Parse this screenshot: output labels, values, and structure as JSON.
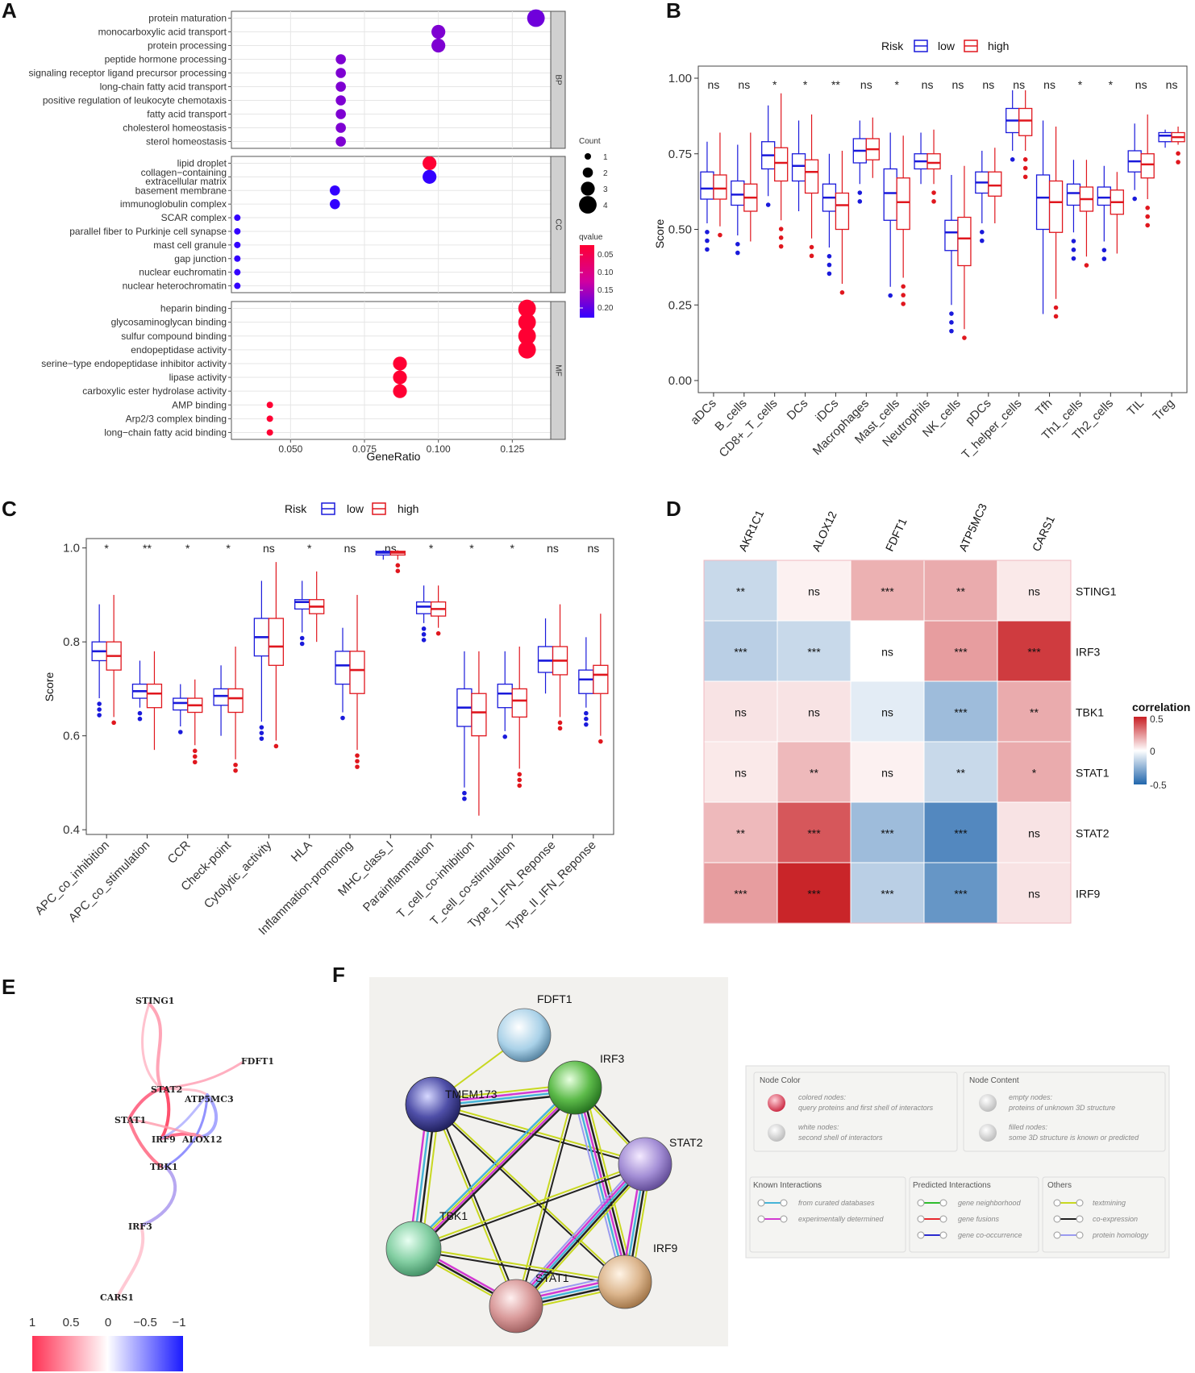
{
  "panels": {
    "A": "A",
    "B": "B",
    "C": "C",
    "D": "D",
    "E": "E",
    "F": "F"
  },
  "chart_data": [
    {
      "panel": "A",
      "type": "scatter",
      "xlabel": "GeneRatio",
      "xticks": [
        "0.050",
        "0.075",
        "0.100",
        "0.125"
      ],
      "xlim": [
        0.03,
        0.138
      ],
      "size_legend_title": "Count",
      "size_legend": [
        "1",
        "2",
        "3",
        "4"
      ],
      "color_legend_title": "qvalue",
      "color_legend_ticks": [
        "0.05",
        "0.10",
        "0.15",
        "0.20"
      ],
      "color_low": "#ff0033",
      "color_high": "#2200ff",
      "facets": [
        {
          "name": "BP",
          "terms": [
            {
              "term": "protein maturation",
              "ratio": 0.133,
              "count": 4,
              "q": 0.19
            },
            {
              "term": "monocarboxylic acid transport",
              "ratio": 0.1,
              "count": 3,
              "q": 0.18
            },
            {
              "term": "protein processing",
              "ratio": 0.1,
              "count": 3,
              "q": 0.18
            },
            {
              "term": "peptide hormone processing",
              "ratio": 0.067,
              "count": 2,
              "q": 0.18
            },
            {
              "term": "signaling receptor ligand precursor processing",
              "ratio": 0.067,
              "count": 2,
              "q": 0.18
            },
            {
              "term": "long-chain fatty acid transport",
              "ratio": 0.067,
              "count": 2,
              "q": 0.18
            },
            {
              "term": "positive regulation of leukocyte chemotaxis",
              "ratio": 0.067,
              "count": 2,
              "q": 0.18
            },
            {
              "term": "fatty acid transport",
              "ratio": 0.067,
              "count": 2,
              "q": 0.18
            },
            {
              "term": "cholesterol homeostasis",
              "ratio": 0.067,
              "count": 2,
              "q": 0.18
            },
            {
              "term": "sterol homeostasis",
              "ratio": 0.067,
              "count": 2,
              "q": 0.18
            }
          ]
        },
        {
          "name": "CC",
          "terms": [
            {
              "term": "lipid droplet",
              "ratio": 0.097,
              "count": 3,
              "q": 0.02
            },
            {
              "term": "collagen−containing\nextracellular matrix",
              "ratio": 0.097,
              "count": 3,
              "q": 0.23
            },
            {
              "term": "basement membrane",
              "ratio": 0.065,
              "count": 2,
              "q": 0.23
            },
            {
              "term": "immunoglobulin complex",
              "ratio": 0.065,
              "count": 2,
              "q": 0.23
            },
            {
              "term": "SCAR complex",
              "ratio": 0.032,
              "count": 1,
              "q": 0.23
            },
            {
              "term": "parallel fiber to Purkinje cell synapse",
              "ratio": 0.032,
              "count": 1,
              "q": 0.23
            },
            {
              "term": "mast cell granule",
              "ratio": 0.032,
              "count": 1,
              "q": 0.23
            },
            {
              "term": "gap junction",
              "ratio": 0.032,
              "count": 1,
              "q": 0.23
            },
            {
              "term": "nuclear euchromatin",
              "ratio": 0.032,
              "count": 1,
              "q": 0.23
            },
            {
              "term": "nuclear heterochromatin",
              "ratio": 0.032,
              "count": 1,
              "q": 0.23
            }
          ]
        },
        {
          "name": "MF",
          "terms": [
            {
              "term": "heparin binding",
              "ratio": 0.13,
              "count": 4,
              "q": 0.02
            },
            {
              "term": "glycosaminoglycan binding",
              "ratio": 0.13,
              "count": 4,
              "q": 0.02
            },
            {
              "term": "sulfur compound binding",
              "ratio": 0.13,
              "count": 4,
              "q": 0.02
            },
            {
              "term": "endopeptidase activity",
              "ratio": 0.13,
              "count": 4,
              "q": 0.02
            },
            {
              "term": "serine−type endopeptidase inhibitor activity",
              "ratio": 0.087,
              "count": 3,
              "q": 0.02
            },
            {
              "term": "lipase activity",
              "ratio": 0.087,
              "count": 3,
              "q": 0.02
            },
            {
              "term": "carboxylic ester hydrolase activity",
              "ratio": 0.087,
              "count": 3,
              "q": 0.02
            },
            {
              "term": "AMP binding",
              "ratio": 0.043,
              "count": 1,
              "q": 0.02
            },
            {
              "term": "Arp2/3 complex binding",
              "ratio": 0.043,
              "count": 1,
              "q": 0.02
            },
            {
              "term": "long−chain fatty acid binding",
              "ratio": 0.043,
              "count": 1,
              "q": 0.02
            }
          ]
        }
      ]
    },
    {
      "panel": "B",
      "type": "box",
      "legend_title": "Risk",
      "legend": [
        "low",
        "high"
      ],
      "series_colors": [
        "#1a1adb",
        "#e0171e"
      ],
      "ylabel": "Score",
      "ylim": [
        -0.04,
        1.04
      ],
      "yticks": [
        "0.00",
        "0.25",
        "0.50",
        "0.75",
        "1.00"
      ],
      "ytick_values": [
        0,
        0.25,
        0.5,
        0.75,
        1.0
      ],
      "categories": [
        "aDCs",
        "B_cells",
        "CD8+_T_cells",
        "DCs",
        "iDCs",
        "Macrophages",
        "Mast_cells",
        "Neutrophils",
        "NK_cells",
        "pDCs",
        "T_helper_cells",
        "Tfh",
        "Th1_cells",
        "Th2_cells",
        "TIL",
        "Treg"
      ],
      "significance": [
        "ns",
        "ns",
        "*",
        "*",
        "**",
        "ns",
        "*",
        "ns",
        "ns",
        "ns",
        "ns",
        "ns",
        "*",
        "*",
        "ns",
        "ns"
      ],
      "low": [
        [
          0.52,
          0.6,
          0.635,
          0.69,
          0.79
        ],
        [
          0.48,
          0.58,
          0.615,
          0.66,
          0.78
        ],
        [
          0.61,
          0.7,
          0.745,
          0.79,
          0.91
        ],
        [
          0.56,
          0.66,
          0.71,
          0.75,
          0.86
        ],
        [
          0.44,
          0.56,
          0.605,
          0.65,
          0.75
        ],
        [
          0.65,
          0.72,
          0.76,
          0.8,
          0.86
        ],
        [
          0.31,
          0.53,
          0.62,
          0.7,
          0.82
        ],
        [
          0.65,
          0.7,
          0.725,
          0.75,
          0.82
        ],
        [
          0.25,
          0.43,
          0.49,
          0.53,
          0.68
        ],
        [
          0.52,
          0.62,
          0.655,
          0.69,
          0.76
        ],
        [
          0.76,
          0.82,
          0.86,
          0.9,
          0.96
        ],
        [
          0.22,
          0.5,
          0.605,
          0.68,
          0.86
        ],
        [
          0.49,
          0.58,
          0.62,
          0.65,
          0.73
        ],
        [
          0.46,
          0.58,
          0.605,
          0.64,
          0.71
        ],
        [
          0.63,
          0.69,
          0.725,
          0.76,
          0.85
        ],
        [
          0.77,
          0.79,
          0.81,
          0.82,
          0.83
        ]
      ],
      "high": [
        [
          0.51,
          0.6,
          0.635,
          0.68,
          0.82
        ],
        [
          0.46,
          0.56,
          0.605,
          0.65,
          0.82
        ],
        [
          0.53,
          0.66,
          0.72,
          0.77,
          0.95
        ],
        [
          0.47,
          0.62,
          0.69,
          0.73,
          0.88
        ],
        [
          0.32,
          0.5,
          0.58,
          0.62,
          0.76
        ],
        [
          0.67,
          0.73,
          0.765,
          0.8,
          0.87
        ],
        [
          0.34,
          0.5,
          0.59,
          0.67,
          0.81
        ],
        [
          0.65,
          0.7,
          0.72,
          0.75,
          0.83
        ],
        [
          0.17,
          0.38,
          0.47,
          0.54,
          0.71
        ],
        [
          0.52,
          0.61,
          0.645,
          0.69,
          0.77
        ],
        [
          0.76,
          0.81,
          0.86,
          0.9,
          0.96
        ],
        [
          0.27,
          0.49,
          0.59,
          0.66,
          0.84
        ],
        [
          0.41,
          0.56,
          0.6,
          0.64,
          0.73
        ],
        [
          0.42,
          0.55,
          0.59,
          0.63,
          0.69
        ],
        [
          0.6,
          0.67,
          0.715,
          0.75,
          0.88
        ],
        [
          0.78,
          0.79,
          0.805,
          0.82,
          0.84
        ]
      ]
    },
    {
      "panel": "C",
      "type": "box",
      "legend_title": "Risk",
      "legend": [
        "low",
        "high"
      ],
      "series_colors": [
        "#1a1adb",
        "#e0171e"
      ],
      "ylabel": "Score",
      "ylim": [
        0.39,
        1.02
      ],
      "yticks": [
        "0.4",
        "0.6",
        "0.8",
        "1.0"
      ],
      "ytick_values": [
        0.4,
        0.6,
        0.8,
        1.0
      ],
      "categories": [
        "APC_co_inhibition",
        "APC_co_stimulation",
        "CCR",
        "Check-point",
        "Cytolytic_activity",
        "HLA",
        "Inflammation-promoting",
        "MHC_class_I",
        "Parainflammation",
        "T_cell_co-inhibition",
        "T_cell_co-stimulation",
        "Type_I_IFN_Reponse",
        "Type_II_IFN_Reponse"
      ],
      "significance": [
        "*",
        "**",
        "*",
        "*",
        "ns",
        "*",
        "ns",
        "ns",
        "*",
        "*",
        "*",
        "ns",
        "ns"
      ],
      "low": [
        [
          0.68,
          0.76,
          0.78,
          0.8,
          0.88
        ],
        [
          0.66,
          0.68,
          0.695,
          0.71,
          0.76
        ],
        [
          0.62,
          0.655,
          0.67,
          0.68,
          0.71
        ],
        [
          0.6,
          0.665,
          0.685,
          0.7,
          0.75
        ],
        [
          0.63,
          0.77,
          0.81,
          0.85,
          0.93
        ],
        [
          0.82,
          0.87,
          0.885,
          0.89,
          0.93
        ],
        [
          0.65,
          0.71,
          0.75,
          0.78,
          0.83
        ],
        [
          0.975,
          0.985,
          0.99,
          0.993,
          0.995
        ],
        [
          0.84,
          0.86,
          0.875,
          0.885,
          0.92
        ],
        [
          0.49,
          0.62,
          0.66,
          0.7,
          0.78
        ],
        [
          0.61,
          0.66,
          0.69,
          0.71,
          0.78
        ],
        [
          0.69,
          0.735,
          0.76,
          0.79,
          0.85
        ],
        [
          0.66,
          0.69,
          0.72,
          0.74,
          0.81
        ]
      ],
      "high": [
        [
          0.64,
          0.74,
          0.77,
          0.8,
          0.9
        ],
        [
          0.57,
          0.66,
          0.69,
          0.71,
          0.78
        ],
        [
          0.58,
          0.65,
          0.665,
          0.68,
          0.72
        ],
        [
          0.55,
          0.65,
          0.68,
          0.7,
          0.79
        ],
        [
          0.59,
          0.75,
          0.79,
          0.85,
          0.97
        ],
        [
          0.8,
          0.86,
          0.875,
          0.89,
          0.95
        ],
        [
          0.57,
          0.69,
          0.74,
          0.78,
          0.9
        ],
        [
          0.975,
          0.985,
          0.99,
          0.993,
          0.995
        ],
        [
          0.83,
          0.855,
          0.87,
          0.885,
          0.92
        ],
        [
          0.43,
          0.6,
          0.65,
          0.69,
          0.78
        ],
        [
          0.53,
          0.64,
          0.675,
          0.7,
          0.79
        ],
        [
          0.64,
          0.73,
          0.76,
          0.79,
          0.88
        ],
        [
          0.6,
          0.69,
          0.73,
          0.75,
          0.86
        ]
      ]
    },
    {
      "panel": "D",
      "type": "heatmap",
      "columns": [
        "AKR1C1",
        "ALOX12",
        "FDFT1",
        "ATP5MC3",
        "CARS1"
      ],
      "rows": [
        "STING1",
        "IRF3",
        "TBK1",
        "STAT1",
        "STAT2",
        "IRF9"
      ],
      "values": [
        [
          -0.2,
          0.05,
          0.28,
          0.3,
          0.08
        ],
        [
          -0.25,
          -0.2,
          0.0,
          0.35,
          0.7
        ],
        [
          0.1,
          0.1,
          -0.1,
          -0.35,
          0.3
        ],
        [
          0.08,
          0.25,
          0.05,
          -0.2,
          0.3
        ],
        [
          0.25,
          0.6,
          -0.35,
          -0.62,
          0.1
        ],
        [
          0.35,
          0.78,
          -0.25,
          -0.55,
          0.1
        ]
      ],
      "labels": [
        [
          "**",
          "ns",
          "***",
          "**",
          "ns"
        ],
        [
          "***",
          "***",
          "ns",
          "***",
          "***"
        ],
        [
          "ns",
          "ns",
          "ns",
          "***",
          "**"
        ],
        [
          "ns",
          "**",
          "ns",
          "**",
          "*"
        ],
        [
          "**",
          "***",
          "***",
          "***",
          "ns"
        ],
        [
          "***",
          "***",
          "***",
          "***",
          "ns"
        ]
      ],
      "legend_title": "correlation",
      "legend_ticks": [
        "0.5",
        "0",
        "-0.5"
      ]
    }
  ],
  "network_e": {
    "nodes": [
      "STING1",
      "FDFT1",
      "STAT2",
      "ATP5MC3",
      "STAT1",
      "IRF9",
      "ALOX12",
      "TBK1",
      "IRF3",
      "CARS1"
    ],
    "scale_ticks": [
      "1",
      "0.5",
      "0",
      "−0.5",
      "−1"
    ]
  },
  "network_f": {
    "nodes": [
      "FDFT1",
      "IRF3",
      "TMEM173",
      "STAT2",
      "TBK1",
      "IRF9",
      "STAT1"
    ],
    "legend": {
      "node_color_title": "Node Color",
      "colored_nodes": "colored nodes:",
      "colored_desc": "query proteins and first shell of interactors",
      "white_nodes": "white nodes:",
      "white_desc": "second shell of interactors",
      "node_content_title": "Node Content",
      "empty_nodes": "empty nodes:",
      "empty_desc": "proteins of unknown 3D structure",
      "filled_nodes": "filled nodes:",
      "filled_desc": "some 3D structure is known or predicted",
      "known_title": "Known Interactions",
      "known": [
        "from curated databases",
        "experimentally determined"
      ],
      "predicted_title": "Predicted Interactions",
      "predicted": [
        "gene neighborhood",
        "gene fusions",
        "gene co-occurrence"
      ],
      "others_title": "Others",
      "others": [
        "textmining",
        "co-expression",
        "protein homology"
      ]
    }
  }
}
